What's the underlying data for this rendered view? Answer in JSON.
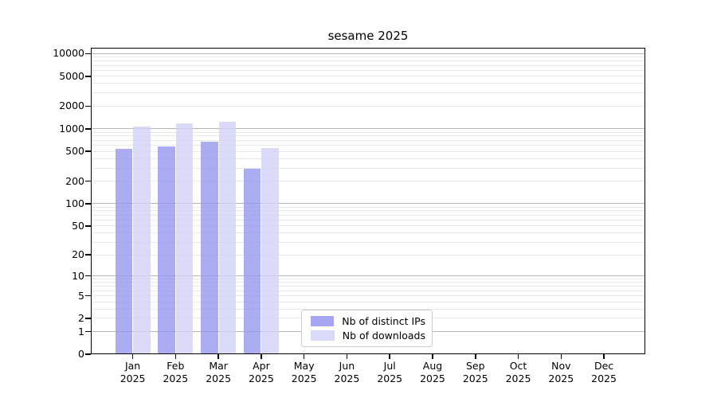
{
  "title": "sesame 2025",
  "chart_data": {
    "type": "bar",
    "title": "sesame 2025",
    "categories": [
      "Jan 2025",
      "Feb 2025",
      "Mar 2025",
      "Apr 2025",
      "May 2025",
      "Jun 2025",
      "Jul 2025",
      "Aug 2025",
      "Sep 2025",
      "Oct 2025",
      "Nov 2025",
      "Dec 2025"
    ],
    "x_months": [
      "Jan",
      "Feb",
      "Mar",
      "Apr",
      "May",
      "Jun",
      "Jul",
      "Aug",
      "Sep",
      "Oct",
      "Nov",
      "Dec"
    ],
    "x_year": "2025",
    "series": [
      {
        "name": "Nb of distinct IPs",
        "color": "#9797f0",
        "values": [
          540,
          580,
          665,
          290,
          null,
          null,
          null,
          null,
          null,
          null,
          null,
          null
        ]
      },
      {
        "name": "Nb of downloads",
        "color": "#d2d2f7",
        "values": [
          1080,
          1170,
          1235,
          550,
          null,
          null,
          null,
          null,
          null,
          null,
          null,
          null
        ]
      }
    ],
    "y_scale": "log10(1+v)",
    "ylim": [
      0,
      12000
    ],
    "y_tick_values": [
      10000,
      5000,
      2000,
      1000,
      500,
      200,
      100,
      50,
      20,
      10,
      5,
      2,
      1,
      0
    ],
    "y_tick_labels": [
      "10000",
      "5000",
      "2000",
      "1000",
      "500",
      "200",
      "100",
      "50",
      "20",
      "10",
      "5",
      "2",
      "1",
      "0"
    ],
    "y_major_gridlines": [
      1,
      10,
      100,
      1000,
      10000
    ],
    "grid": true,
    "legend_position": "inside-bottom-center"
  },
  "colors": {
    "bar_distinct_ips": "#9797f0",
    "bar_downloads": "#d2d2f7",
    "grid_major": "#b6b6b6",
    "grid_minor": "#e9e9e9",
    "axis": "#000000",
    "legend_border": "#cccccc",
    "background": "#ffffff"
  }
}
